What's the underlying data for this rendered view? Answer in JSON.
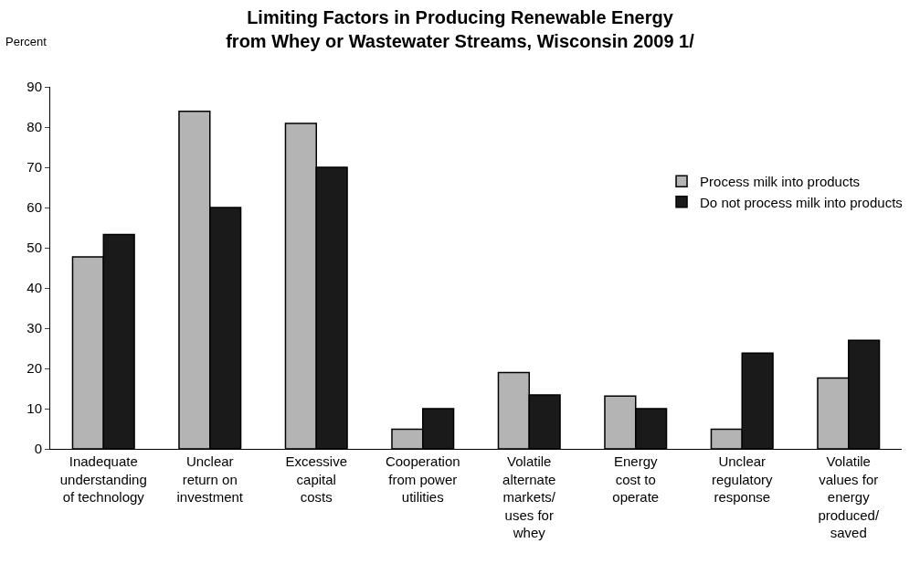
{
  "chart_data": {
    "type": "bar",
    "title": "Limiting Factors in Producing Renewable Energy\nfrom Whey or Wastewater Streams, Wisconsin 2009 1/",
    "ylabel": "Percent",
    "categories": [
      "Inadequate\nunderstanding\nof technology",
      "Unclear\nreturn on\ninvestment",
      "Excessive\ncapital\ncosts",
      "Cooperation\nfrom power\nutilities",
      "Volatile\nalternate\nmarkets/\nuses for\nwhey",
      "Energy\ncost to\noperate",
      "Unclear\nregulatory\nresponse",
      "Volatile\nvalues for\nenergy\nproduced/\nsaved"
    ],
    "series": [
      {
        "name": "Process milk into products",
        "color": "#b4b4b4",
        "values": [
          47.7,
          83.9,
          80.9,
          4.9,
          19,
          13.1,
          4.9,
          17.6
        ]
      },
      {
        "name": "Do not process milk into products",
        "color": "#1a1a1a",
        "values": [
          53.3,
          60,
          70,
          10,
          13.4,
          10,
          23.8,
          27
        ]
      }
    ],
    "ylim": [
      0,
      90
    ],
    "yticks": [
      0,
      10,
      20,
      30,
      40,
      50,
      60,
      70,
      80,
      90
    ],
    "legend": "right"
  }
}
